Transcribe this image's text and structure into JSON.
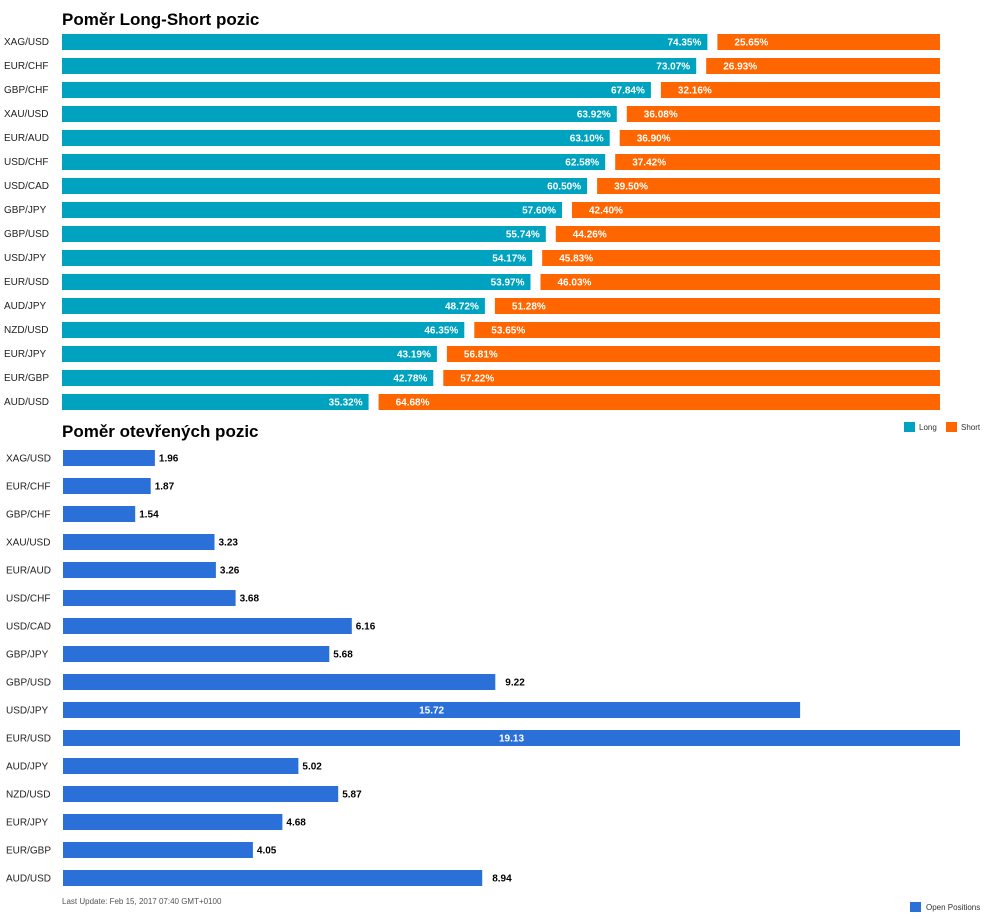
{
  "colors": {
    "long": "#00A3BF",
    "short": "#FF6600",
    "open": "#2B6FD8"
  },
  "footer": "Last Update: Feb 15, 2017 07:40 GMT+0100",
  "chart_data": [
    {
      "type": "bar",
      "orientation": "horizontal",
      "stacked": "percent",
      "title": "Poměr Long-Short pozic",
      "categories": [
        "XAG/USD",
        "EUR/CHF",
        "GBP/CHF",
        "XAU/USD",
        "EUR/AUD",
        "USD/CHF",
        "USD/CAD",
        "GBP/JPY",
        "GBP/USD",
        "USD/JPY",
        "EUR/USD",
        "AUD/JPY",
        "NZD/USD",
        "EUR/JPY",
        "EUR/GBP",
        "AUD/USD"
      ],
      "series": [
        {
          "name": "Long",
          "values": [
            74.35,
            73.07,
            67.84,
            63.92,
            63.1,
            62.58,
            60.5,
            57.6,
            55.74,
            54.17,
            53.97,
            48.72,
            46.35,
            43.19,
            42.78,
            35.32
          ],
          "labels": [
            "74.35%",
            "73.07%",
            "67.84%",
            "63.92%",
            "63.10%",
            "62.58%",
            "60.50%",
            "57.60%",
            "55.74%",
            "54.17%",
            "53.97%",
            "48.72%",
            "46.35%",
            "43.19%",
            "42.78%",
            "35.32%"
          ]
        },
        {
          "name": "Short",
          "values": [
            25.65,
            26.93,
            32.16,
            36.08,
            36.9,
            37.42,
            39.5,
            42.4,
            44.26,
            45.83,
            46.03,
            51.28,
            53.65,
            56.81,
            57.22,
            64.68
          ],
          "labels": [
            "25.65%",
            "26.93%",
            "32.16%",
            "36.08%",
            "36.90%",
            "37.42%",
            "39.50%",
            "42.40%",
            "44.26%",
            "45.83%",
            "46.03%",
            "51.28%",
            "53.65%",
            "56.81%",
            "57.22%",
            "64.68%"
          ]
        }
      ],
      "xlim": [
        0,
        100
      ],
      "grid": false,
      "legend": "top-right"
    },
    {
      "type": "bar",
      "orientation": "horizontal",
      "title": "Poměr otevřených pozic",
      "categories": [
        "XAG/USD",
        "EUR/CHF",
        "GBP/CHF",
        "XAU/USD",
        "EUR/AUD",
        "USD/CHF",
        "USD/CAD",
        "GBP/JPY",
        "GBP/USD",
        "USD/JPY",
        "EUR/USD",
        "AUD/JPY",
        "NZD/USD",
        "EUR/JPY",
        "EUR/GBP",
        "AUD/USD"
      ],
      "series": [
        {
          "name": "Open Positions",
          "values": [
            1.96,
            1.87,
            1.54,
            3.23,
            3.26,
            3.68,
            6.16,
            5.68,
            9.22,
            15.72,
            19.13,
            5.02,
            5.87,
            4.68,
            4.05,
            8.94
          ],
          "labels": [
            "1.96",
            "1.87",
            "1.54",
            "3.23",
            "3.26",
            "3.68",
            "6.16",
            "5.68",
            "9.22",
            "15.72",
            "19.13",
            "5.02",
            "5.87",
            "4.68",
            "4.05",
            "8.94"
          ]
        }
      ],
      "xlim": [
        0,
        19.13
      ],
      "grid": false,
      "legend": "bottom-right"
    }
  ]
}
